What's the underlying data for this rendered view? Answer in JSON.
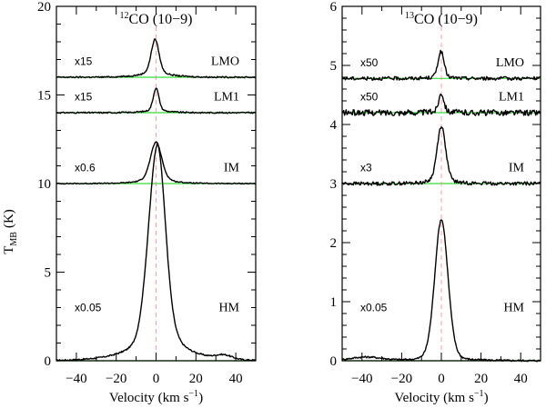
{
  "ylabel_main": "T",
  "ylabel_sub": "MB",
  "ylabel_unit": "(K)",
  "chart_data": [
    {
      "type": "line",
      "title_sup": "12",
      "title_main": "CO (10−9)",
      "xlabel": "Velocity (km s",
      "xlabel_sup": "−1",
      "xlabel_end": ")",
      "xlim": [
        -50,
        50
      ],
      "ylim": [
        0,
        20
      ],
      "xticks": [
        -40,
        -20,
        0,
        20,
        40
      ],
      "yticks": [
        0,
        5,
        10,
        15,
        20
      ],
      "series": [
        {
          "name": "HM",
          "scale": "x0.05",
          "baseline": 0,
          "peak": 9.7,
          "center": 1.0,
          "sigma": 3.6,
          "wing": 2.6,
          "wing_sigma": 11,
          "shoulder": 4.6,
          "shoulder_center": -4,
          "shoulder_sigma": 3.2,
          "noise": 0.04,
          "bump": 0.22,
          "bump_center": 34,
          "bump_sigma": 4
        },
        {
          "name": "IM",
          "scale": "x0.6",
          "baseline": 10,
          "peak": 2.0,
          "center": 0.0,
          "sigma": 2.6,
          "wing": 0.45,
          "wing_sigma": 7,
          "noise": 0.03
        },
        {
          "name": "LM1",
          "scale": "x15",
          "baseline": 14,
          "peak": 1.2,
          "center": 0.0,
          "sigma": 1.3,
          "wing": 0.25,
          "wing_sigma": 5,
          "noise": 0.04
        },
        {
          "name": "LMO",
          "scale": "x15",
          "baseline": 16,
          "peak": 1.8,
          "center": -0.5,
          "sigma": 1.8,
          "wing": 0.45,
          "wing_sigma": 7,
          "noise": 0.04
        }
      ]
    },
    {
      "type": "line",
      "title_sup": "13",
      "title_main": "CO (10−9)",
      "xlabel": "Velocity (km s",
      "xlabel_sup": "−1",
      "xlabel_end": ")",
      "xlim": [
        -50,
        50
      ],
      "ylim": [
        0,
        6
      ],
      "xticks": [
        -40,
        -20,
        0,
        20,
        40
      ],
      "yticks": [
        0,
        1,
        2,
        3,
        4,
        5,
        6
      ],
      "series": [
        {
          "name": "HM",
          "scale": "x0.05",
          "baseline": 0,
          "peak": 2.33,
          "center": 0.0,
          "sigma": 3.1,
          "wing": 0.08,
          "wing_sigma": 12,
          "noise": 0.015,
          "bump": 0.06,
          "bump_center": -38,
          "bump_sigma": 8
        },
        {
          "name": "IM",
          "scale": "x3",
          "baseline": 3,
          "peak": 0.9,
          "center": 0.0,
          "sigma": 2.0,
          "wing": 0.1,
          "wing_sigma": 6,
          "noise": 0.03
        },
        {
          "name": "LM1",
          "scale": "x50",
          "baseline": 4.2,
          "peak": 0.3,
          "center": 0.0,
          "sigma": 1.2,
          "wing": 0.05,
          "wing_sigma": 4,
          "noise": 0.05
        },
        {
          "name": "LMO",
          "scale": "x50",
          "baseline": 4.78,
          "peak": 0.42,
          "center": -0.2,
          "sigma": 1.4,
          "wing": 0.05,
          "wing_sigma": 4,
          "noise": 0.03
        }
      ]
    }
  ]
}
